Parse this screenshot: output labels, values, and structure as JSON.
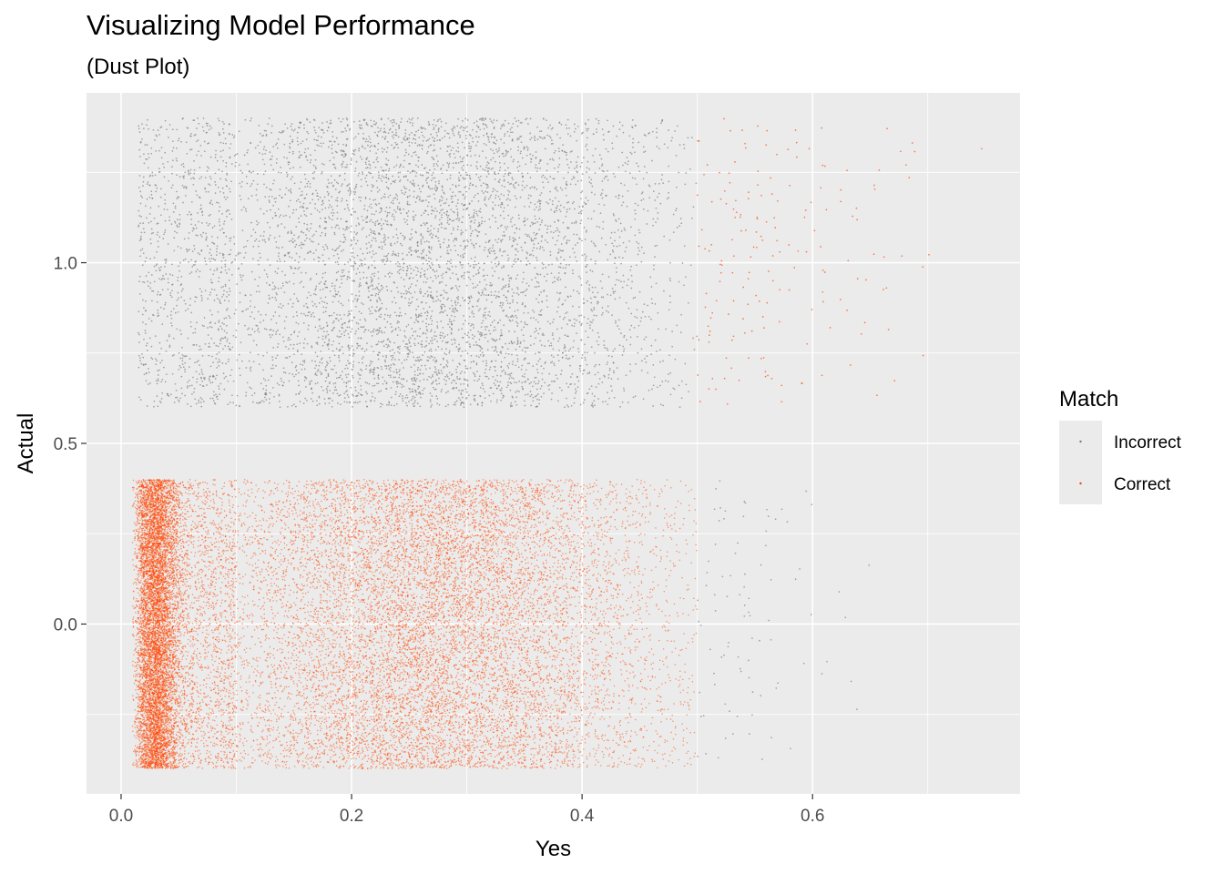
{
  "chart_data": {
    "type": "scatter",
    "title": "Visualizing Model Performance",
    "subtitle": "(Dust Plot)",
    "xlabel": "Yes",
    "ylabel": "Actual",
    "xlim": [
      -0.03,
      0.78
    ],
    "ylim": [
      -0.47,
      1.47
    ],
    "x_ticks": [
      0.0,
      0.2,
      0.4,
      0.6
    ],
    "x_tick_labels": [
      "0.0",
      "0.2",
      "0.4",
      "0.6"
    ],
    "y_ticks": [
      0.0,
      0.5,
      1.0
    ],
    "y_tick_labels": [
      "0.0",
      "0.5",
      "1.0"
    ],
    "grid": true,
    "jitter": 0.4,
    "legend": {
      "title": "Match",
      "placement": "right",
      "entries": [
        "Incorrect",
        "Correct"
      ]
    },
    "threshold": 0.5,
    "series": [
      {
        "name": "Incorrect",
        "color": "#7f7f7f",
        "groups": [
          {
            "actual": 1,
            "x_range": [
              0.015,
              0.5
            ],
            "approx_points": 6000
          },
          {
            "actual": 0,
            "x_range": [
              0.5,
              0.66
            ],
            "approx_points": 90
          }
        ]
      },
      {
        "name": "Correct",
        "color": "#ff4500",
        "groups": [
          {
            "actual": 0,
            "x_range": [
              0.01,
              0.5
            ],
            "dense_band": [
              0.012,
              0.06
            ],
            "approx_points": 22000
          },
          {
            "actual": 1,
            "x_range": [
              0.5,
              0.75
            ],
            "approx_points": 180
          }
        ]
      }
    ]
  }
}
